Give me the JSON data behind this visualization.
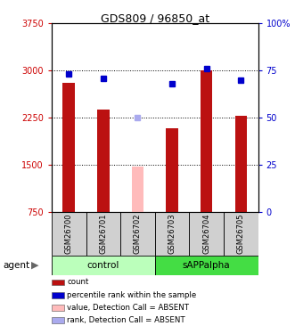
{
  "title": "GDS809 / 96850_at",
  "samples": [
    "GSM26700",
    "GSM26701",
    "GSM26702",
    "GSM26703",
    "GSM26704",
    "GSM26705"
  ],
  "bar_values": [
    2800,
    2380,
    null,
    2080,
    3010,
    2280
  ],
  "bar_absent_values": [
    null,
    null,
    1480,
    null,
    null,
    null
  ],
  "bar_color": "#bb1111",
  "bar_absent_color": "#ffbbbb",
  "dot_values": [
    73,
    71,
    null,
    68,
    76,
    70
  ],
  "dot_absent_values": [
    null,
    null,
    50,
    null,
    null,
    null
  ],
  "dot_color": "#0000cc",
  "dot_absent_color": "#aaaaee",
  "ylim_left": [
    750,
    3750
  ],
  "ylim_right": [
    0,
    100
  ],
  "yticks_left": [
    750,
    1500,
    2250,
    3000,
    3750
  ],
  "ytick_labels_left": [
    "750",
    "1500",
    "2250",
    "3000",
    "3750"
  ],
  "yticks_right": [
    0,
    25,
    50,
    75,
    100
  ],
  "ytick_labels_right": [
    "0",
    "25",
    "50",
    "75",
    "100%"
  ],
  "hlines": [
    1500,
    2250,
    3000
  ],
  "groups": [
    {
      "label": "control",
      "indices": [
        0,
        1,
        2
      ],
      "color": "#bbffbb"
    },
    {
      "label": "sAPPalpha",
      "indices": [
        3,
        4,
        5
      ],
      "color": "#44dd44"
    }
  ],
  "agent_label": "agent",
  "left_axis_color": "#cc0000",
  "right_axis_color": "#0000cc",
  "legend_items": [
    {
      "label": "count",
      "color": "#bb1111"
    },
    {
      "label": "percentile rank within the sample",
      "color": "#0000cc"
    },
    {
      "label": "value, Detection Call = ABSENT",
      "color": "#ffbbbb"
    },
    {
      "label": "rank, Detection Call = ABSENT",
      "color": "#aaaaee"
    }
  ],
  "bar_width": 0.35,
  "marker_size": 4
}
